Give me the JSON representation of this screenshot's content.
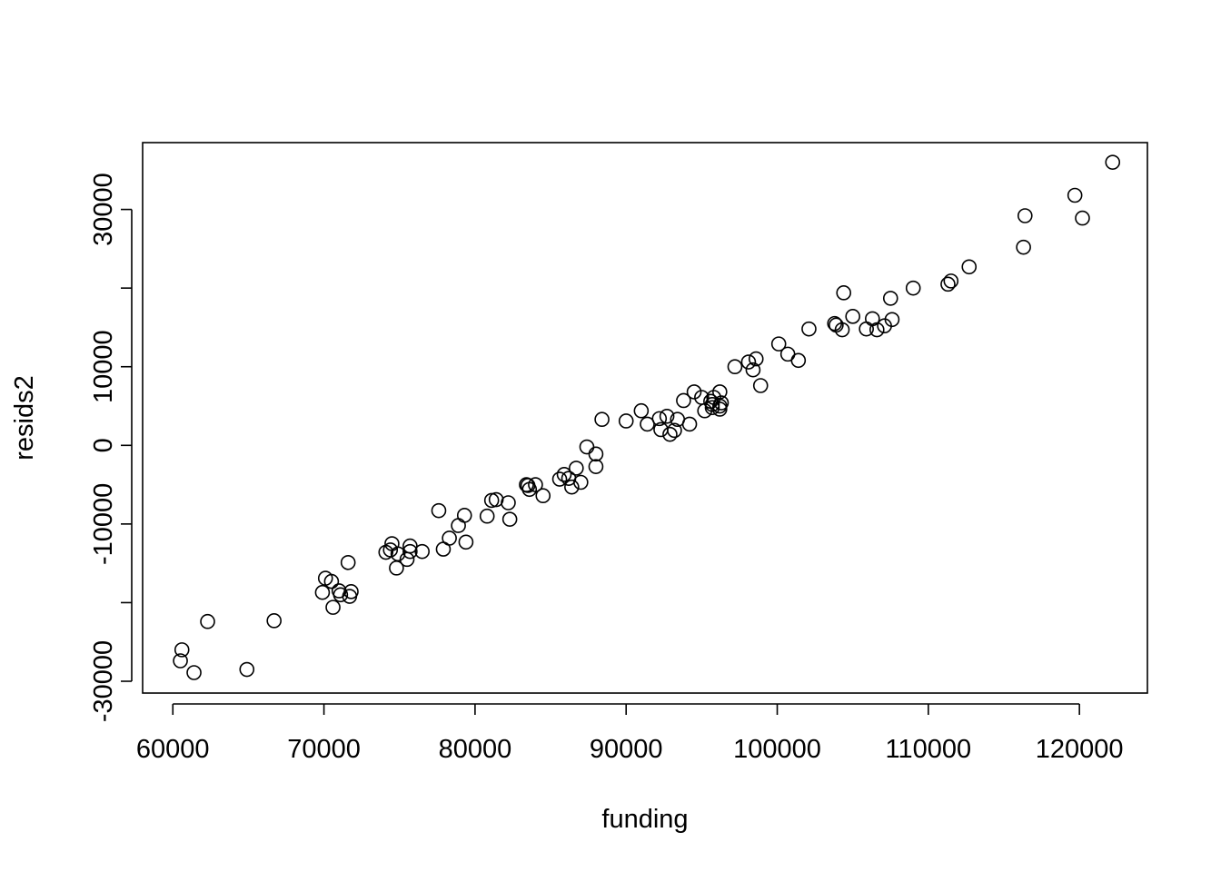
{
  "chart_data": {
    "type": "scatter",
    "xlabel": "funding",
    "ylabel": "resids2",
    "xlim": [
      58000,
      124500
    ],
    "ylim": [
      -31500,
      38500
    ],
    "x_ticks": [
      60000,
      70000,
      80000,
      90000,
      100000,
      110000,
      120000
    ],
    "x_tick_labels": [
      "60000",
      "70000",
      "80000",
      "90000",
      "100000",
      "110000",
      "120000"
    ],
    "y_ticks": [
      -30000,
      -20000,
      -10000,
      0,
      10000,
      20000,
      30000
    ],
    "y_tick_labels": [
      "-30000",
      "",
      "-10000",
      "0",
      "10000",
      "",
      "30000"
    ],
    "points": [
      [
        60500,
        -27400
      ],
      [
        60600,
        -26000
      ],
      [
        61400,
        -28900
      ],
      [
        62300,
        -22400
      ],
      [
        64900,
        -28500
      ],
      [
        66700,
        -22300
      ],
      [
        69900,
        -18700
      ],
      [
        70100,
        -16900
      ],
      [
        70500,
        -17300
      ],
      [
        70600,
        -20600
      ],
      [
        71000,
        -18500
      ],
      [
        71100,
        -19000
      ],
      [
        71600,
        -14900
      ],
      [
        71700,
        -19200
      ],
      [
        71800,
        -18600
      ],
      [
        74100,
        -13600
      ],
      [
        74400,
        -13300
      ],
      [
        74500,
        -12500
      ],
      [
        74800,
        -15600
      ],
      [
        74900,
        -13800
      ],
      [
        75500,
        -14500
      ],
      [
        75700,
        -13500
      ],
      [
        75700,
        -12800
      ],
      [
        76500,
        -13500
      ],
      [
        77600,
        -8300
      ],
      [
        77900,
        -13200
      ],
      [
        78300,
        -11800
      ],
      [
        78900,
        -10200
      ],
      [
        79300,
        -8900
      ],
      [
        79400,
        -12300
      ],
      [
        80800,
        -9000
      ],
      [
        81100,
        -7000
      ],
      [
        81400,
        -6900
      ],
      [
        82200,
        -7300
      ],
      [
        82300,
        -9400
      ],
      [
        83400,
        -5000
      ],
      [
        83500,
        -5100
      ],
      [
        83600,
        -5600
      ],
      [
        84000,
        -5000
      ],
      [
        84500,
        -6400
      ],
      [
        85600,
        -4300
      ],
      [
        85900,
        -3700
      ],
      [
        86200,
        -4200
      ],
      [
        86400,
        -5300
      ],
      [
        86700,
        -2900
      ],
      [
        87000,
        -4700
      ],
      [
        87400,
        -200
      ],
      [
        88000,
        -1100
      ],
      [
        88000,
        -2700
      ],
      [
        88400,
        3300
      ],
      [
        90000,
        3100
      ],
      [
        91000,
        4400
      ],
      [
        91400,
        2700
      ],
      [
        92200,
        3400
      ],
      [
        92300,
        2000
      ],
      [
        92700,
        3700
      ],
      [
        92900,
        1400
      ],
      [
        93200,
        1900
      ],
      [
        93400,
        3300
      ],
      [
        93800,
        5700
      ],
      [
        94200,
        2700
      ],
      [
        94500,
        6800
      ],
      [
        95000,
        6100
      ],
      [
        95200,
        4400
      ],
      [
        95600,
        5600
      ],
      [
        95700,
        5200
      ],
      [
        95700,
        4800
      ],
      [
        95800,
        6100
      ],
      [
        96200,
        4600
      ],
      [
        96200,
        5000
      ],
      [
        96200,
        6800
      ],
      [
        96300,
        5400
      ],
      [
        97200,
        10000
      ],
      [
        98100,
        10600
      ],
      [
        98400,
        9600
      ],
      [
        98600,
        11000
      ],
      [
        98900,
        7600
      ],
      [
        100100,
        12900
      ],
      [
        100700,
        11600
      ],
      [
        101400,
        10800
      ],
      [
        102100,
        14800
      ],
      [
        103800,
        15500
      ],
      [
        103900,
        15300
      ],
      [
        104300,
        14700
      ],
      [
        104400,
        19400
      ],
      [
        105000,
        16400
      ],
      [
        105900,
        14800
      ],
      [
        106300,
        16100
      ],
      [
        106600,
        14700
      ],
      [
        107100,
        15200
      ],
      [
        107500,
        18700
      ],
      [
        107600,
        16000
      ],
      [
        109000,
        20000
      ],
      [
        111300,
        20500
      ],
      [
        111500,
        20900
      ],
      [
        112700,
        22700
      ],
      [
        116300,
        25200
      ],
      [
        116400,
        29200
      ],
      [
        119700,
        31800
      ],
      [
        120200,
        28900
      ],
      [
        122200,
        36000
      ]
    ]
  }
}
